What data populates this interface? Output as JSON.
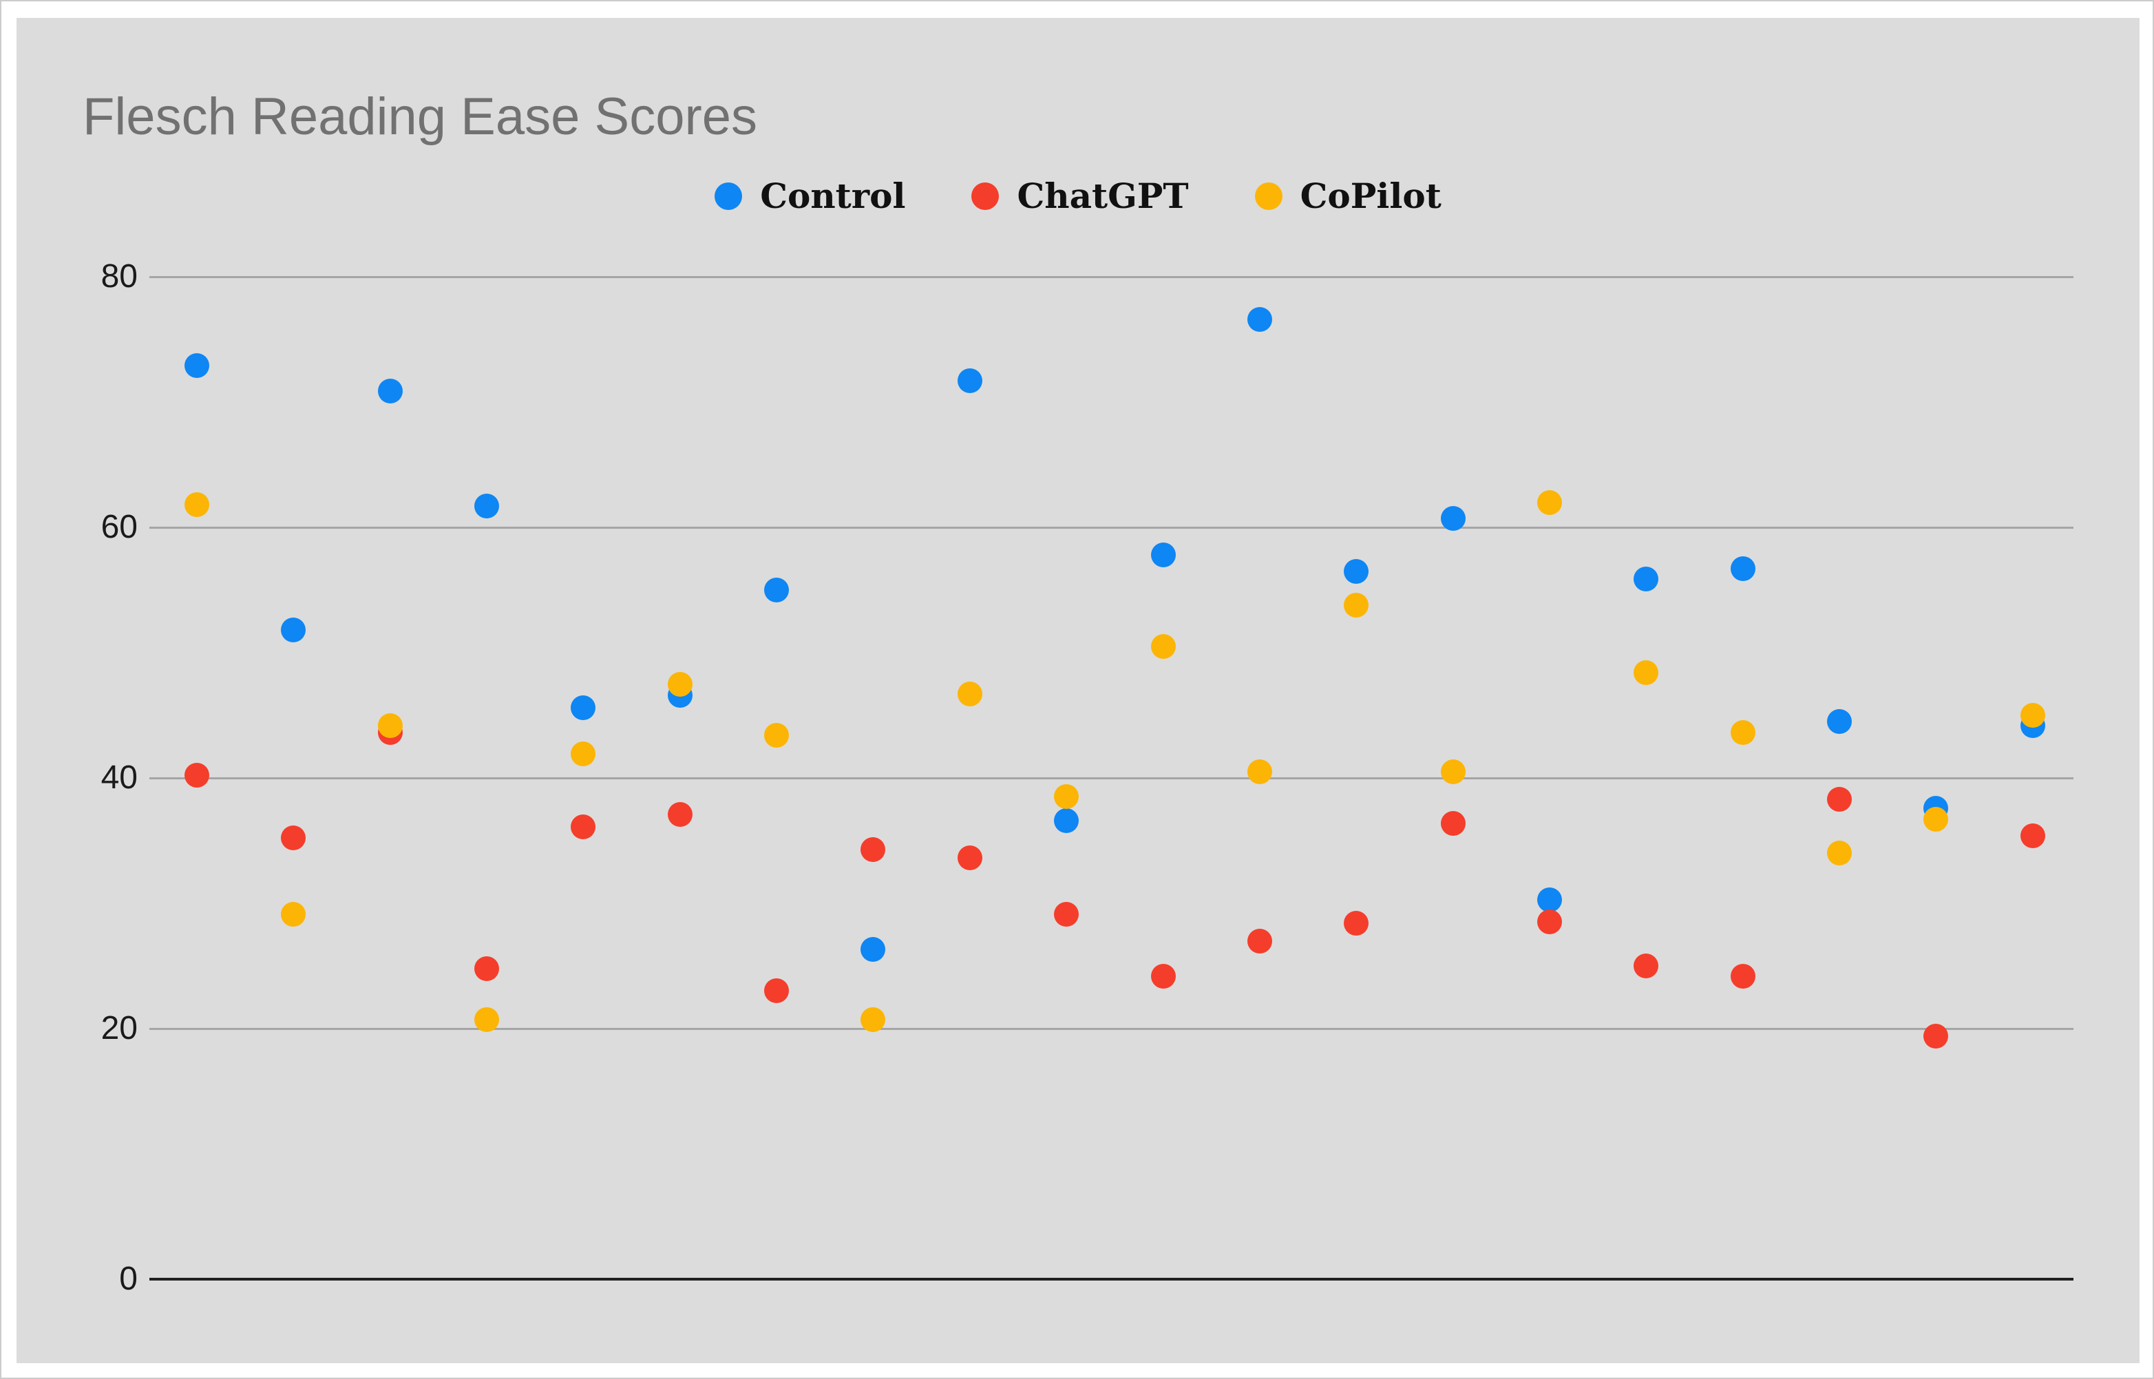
{
  "title": "Flesch Reading Ease Scores",
  "chart_data": {
    "type": "scatter",
    "title": "Flesch Reading Ease Scores",
    "x": [
      1,
      2,
      3,
      4,
      5,
      6,
      7,
      8,
      9,
      10,
      11,
      12,
      13,
      14,
      15,
      16,
      17,
      18,
      19,
      20
    ],
    "xlabel": "",
    "ylabel": "",
    "yticks": [
      0,
      20,
      40,
      60,
      80
    ],
    "ylim": [
      0,
      88
    ],
    "grid": true,
    "legend_position": "top-center",
    "series": [
      {
        "name": "Control",
        "color": "#0e86f4",
        "values": [
          72.9,
          51.8,
          70.9,
          61.7,
          45.6,
          46.6,
          55.0,
          26.3,
          71.7,
          36.6,
          57.8,
          76.6,
          56.5,
          60.7,
          30.3,
          55.9,
          56.7,
          44.5,
          37.6,
          44.2
        ]
      },
      {
        "name": "ChatGPT",
        "color": "#f53d2b",
        "values": [
          40.2,
          35.2,
          43.6,
          24.8,
          36.1,
          37.1,
          23.0,
          34.3,
          33.6,
          29.1,
          24.2,
          27.0,
          28.4,
          36.4,
          28.5,
          25.0,
          24.2,
          38.3,
          19.4,
          35.4
        ]
      },
      {
        "name": "CoPilot",
        "color": "#fcb504",
        "values": [
          61.8,
          29.1,
          44.2,
          20.7,
          41.9,
          47.5,
          43.4,
          20.7,
          46.7,
          38.5,
          50.5,
          40.5,
          53.8,
          40.5,
          62.0,
          48.4,
          43.6,
          34.0,
          36.7,
          45.0
        ]
      }
    ]
  },
  "colors": {
    "page_bg": "#ffffff",
    "panel_bg": "#dcdcdc",
    "grid": "#a5a5a5",
    "axis": "#1f1f1f",
    "title_text": "#717171",
    "tick_text": "#1a1a1a",
    "legend_text": "#111111"
  }
}
